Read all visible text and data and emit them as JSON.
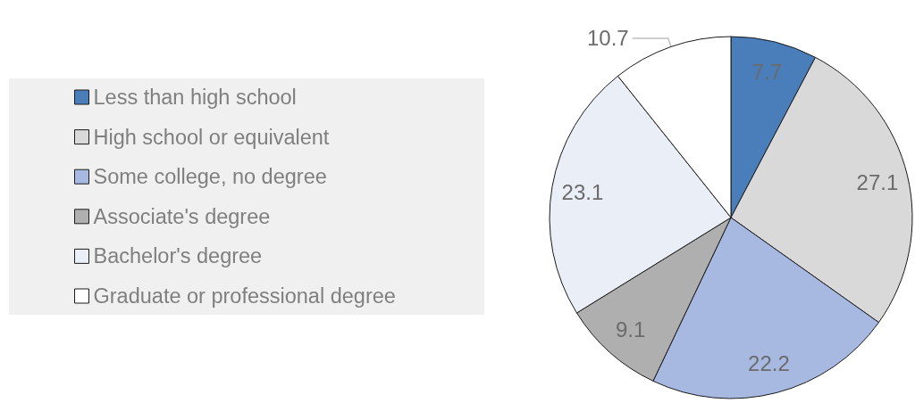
{
  "chart_data": {
    "type": "pie",
    "categories": [
      "Less than high school",
      "High school or equivalent",
      "Some college, no degree",
      "Associate's degree",
      "Bachelor's degree",
      "Graduate or professional degree"
    ],
    "values": [
      7.7,
      27.1,
      22.2,
      9.1,
      23.1,
      10.7
    ],
    "colors": [
      "#4a7ebb",
      "#d9d9d9",
      "#a7b8e1",
      "#afafaf",
      "#eaeef7",
      "#ffffff"
    ],
    "data_labels": true,
    "legend": "left"
  }
}
